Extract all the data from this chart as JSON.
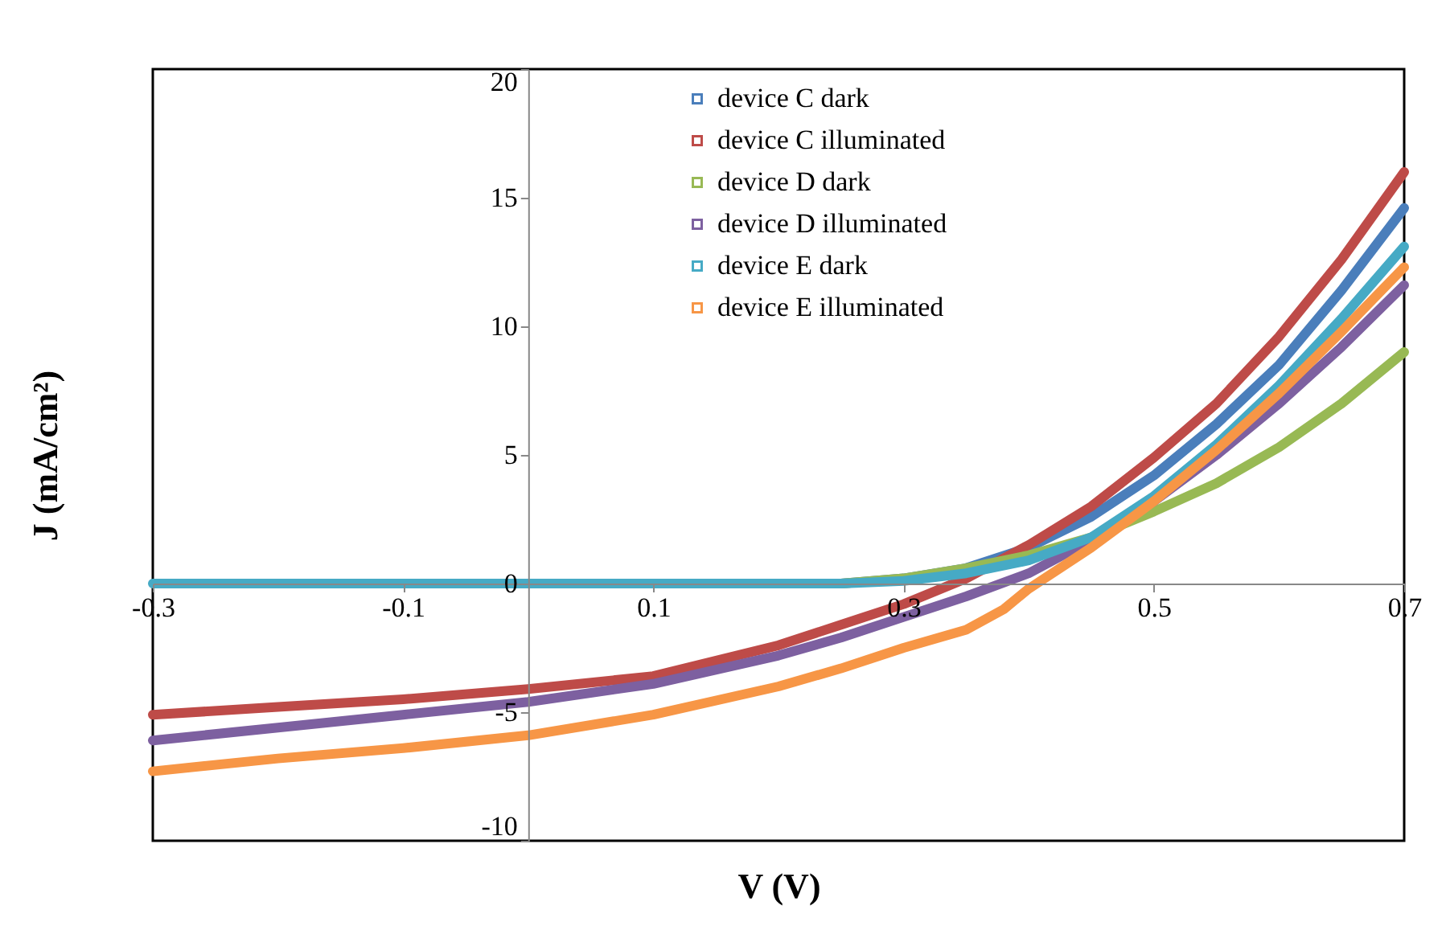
{
  "chart_data": {
    "type": "line",
    "xlabel": "V (V)",
    "ylabel": "J (mA/cm²)",
    "xlim": [
      -0.3,
      0.7
    ],
    "ylim": [
      -10,
      20
    ],
    "xticks": [
      -0.3,
      -0.1,
      0.1,
      0.3,
      0.5,
      0.7
    ],
    "yticks": [
      -10,
      -5,
      0,
      5,
      10,
      15,
      20
    ],
    "grid": false,
    "legend": "top",
    "line_style": "solid",
    "series": [
      {
        "name": "device C dark",
        "color": "#4a7ebb",
        "x": [
          0.2,
          0.25,
          0.3,
          0.35,
          0.4,
          0.45,
          0.5,
          0.55,
          0.6,
          0.65,
          0.7
        ],
        "values": [
          0,
          0,
          0.2,
          0.6,
          1.4,
          2.6,
          4.2,
          6.2,
          8.5,
          11.4,
          14.6
        ]
      },
      {
        "name": "device C illuminated",
        "color": "#be4b48",
        "x": [
          -0.3,
          -0.2,
          -0.1,
          0,
          0.1,
          0.2,
          0.25,
          0.3,
          0.35,
          0.4,
          0.45,
          0.5,
          0.55,
          0.6,
          0.65,
          0.7
        ],
        "values": [
          -5.1,
          -4.8,
          -4.5,
          -4.1,
          -3.6,
          -2.4,
          -1.6,
          -0.8,
          0.2,
          1.5,
          3.0,
          4.9,
          7.0,
          9.6,
          12.6,
          16.0
        ]
      },
      {
        "name": "device D dark",
        "color": "#98b954",
        "x": [
          0.2,
          0.25,
          0.3,
          0.35,
          0.4,
          0.45,
          0.5,
          0.55,
          0.6,
          0.65,
          0.7
        ],
        "values": [
          0,
          0,
          0.2,
          0.6,
          1.1,
          1.8,
          2.8,
          3.9,
          5.3,
          7.0,
          9.0
        ]
      },
      {
        "name": "device D illuminated",
        "color": "#7d60a0",
        "x": [
          -0.3,
          -0.2,
          -0.1,
          0,
          0.1,
          0.2,
          0.25,
          0.3,
          0.35,
          0.4,
          0.45,
          0.5,
          0.55,
          0.6,
          0.65,
          0.7
        ],
        "values": [
          -6.1,
          -5.6,
          -5.1,
          -4.6,
          -3.9,
          -2.8,
          -2.1,
          -1.3,
          -0.5,
          0.4,
          1.7,
          3.2,
          5.0,
          7.0,
          9.2,
          11.6
        ]
      },
      {
        "name": "device E dark",
        "color": "#46aac5",
        "x": [
          -0.3,
          -0.2,
          -0.1,
          0,
          0.1,
          0.2,
          0.25,
          0.3,
          0.35,
          0.4,
          0.45,
          0.5,
          0.55,
          0.6,
          0.65,
          0.7
        ],
        "values": [
          0,
          0,
          0,
          0,
          0,
          0,
          0,
          0.1,
          0.4,
          0.9,
          1.8,
          3.4,
          5.4,
          7.7,
          10.3,
          13.1
        ]
      },
      {
        "name": "device E illuminated",
        "color": "#f79646",
        "x": [
          -0.3,
          -0.2,
          -0.1,
          0,
          0.1,
          0.2,
          0.25,
          0.3,
          0.35,
          0.38,
          0.4,
          0.45,
          0.5,
          0.55,
          0.6,
          0.65,
          0.7
        ],
        "values": [
          -7.3,
          -6.8,
          -6.4,
          -5.9,
          -5.1,
          -4.0,
          -3.3,
          -2.5,
          -1.8,
          -1.0,
          -0.2,
          1.4,
          3.2,
          5.2,
          7.4,
          9.8,
          12.3
        ]
      }
    ]
  }
}
